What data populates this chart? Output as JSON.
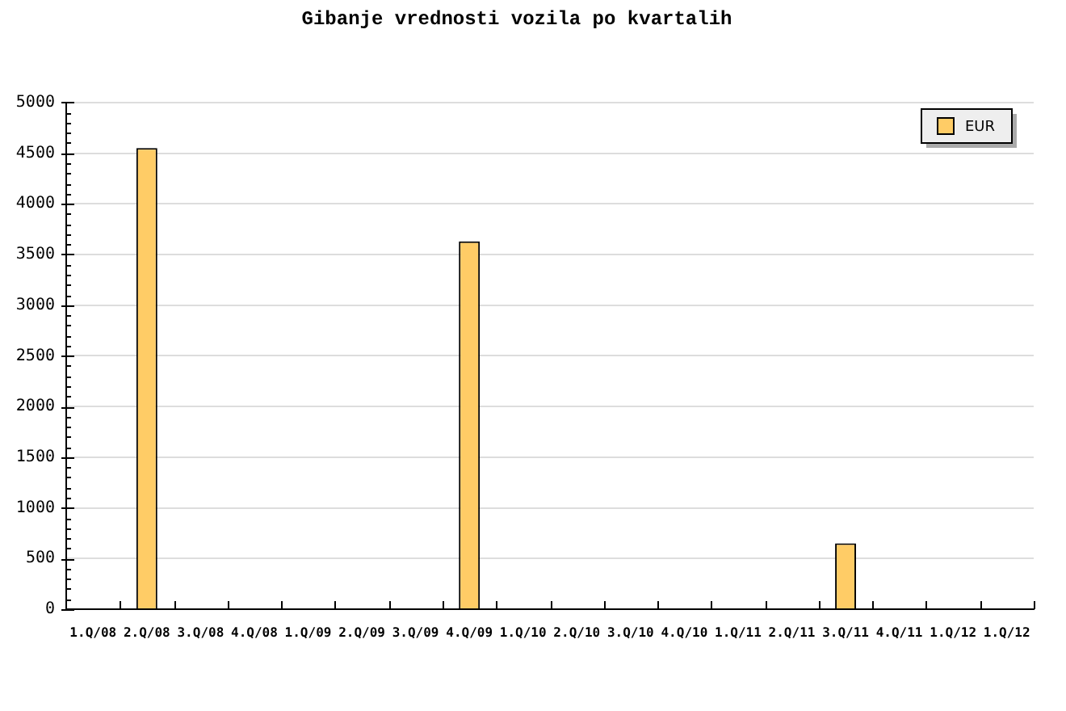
{
  "chart_data": {
    "type": "bar",
    "title": "Gibanje vrednosti vozila po kvartalih",
    "categories": [
      "1.Q/08",
      "2.Q/08",
      "3.Q/08",
      "4.Q/08",
      "1.Q/09",
      "2.Q/09",
      "3.Q/09",
      "4.Q/09",
      "1.Q/10",
      "2.Q/10",
      "3.Q/10",
      "4.Q/10",
      "1.Q/11",
      "2.Q/11",
      "3.Q/11",
      "4.Q/11",
      "1.Q/12",
      "1.Q/12"
    ],
    "series": [
      {
        "name": "EUR",
        "color": "#ffcc66",
        "values": [
          null,
          4550,
          null,
          null,
          null,
          null,
          null,
          3630,
          null,
          null,
          null,
          null,
          null,
          null,
          650,
          null,
          null,
          null
        ]
      }
    ],
    "ylim": [
      0,
      5000
    ],
    "yticks": [
      0,
      {
        "value": 100,
        "label": null
      },
      {
        "value": 200,
        "label": null
      },
      {
        "value": 300,
        "label": null
      },
      {
        "value": 400,
        "label": null
      },
      500,
      {
        "value": 600,
        "label": null
      },
      {
        "value": 700,
        "label": null
      },
      {
        "value": 800,
        "label": null
      },
      {
        "value": 900,
        "label": null
      },
      1000,
      {
        "value": 1100,
        "label": null
      },
      {
        "value": 1200,
        "label": null
      },
      {
        "value": 1300,
        "label": null
      },
      {
        "value": 1400,
        "label": null
      },
      1500,
      {
        "value": 1600,
        "label": null
      },
      {
        "value": 1700,
        "label": null
      },
      {
        "value": 1800,
        "label": null
      },
      {
        "value": 1900,
        "label": null
      },
      2000,
      {
        "value": 2100,
        "label": null
      },
      {
        "value": 2200,
        "label": null
      },
      {
        "value": 2300,
        "label": null
      },
      {
        "value": 2400,
        "label": null
      },
      2500,
      {
        "value": 2600,
        "label": null
      },
      {
        "value": 2700,
        "label": null
      },
      {
        "value": 2800,
        "label": null
      },
      {
        "value": 2900,
        "label": null
      },
      3000,
      {
        "value": 3100,
        "label": null
      },
      {
        "value": 3200,
        "label": null
      },
      {
        "value": 3300,
        "label": null
      },
      {
        "value": 3400,
        "label": null
      },
      3500,
      {
        "value": 3600,
        "label": null
      },
      {
        "value": 3700,
        "label": null
      },
      {
        "value": 3800,
        "label": null
      },
      {
        "value": 3900,
        "label": null
      },
      4000,
      {
        "value": 4100,
        "label": null
      },
      {
        "value": 4200,
        "label": null
      },
      {
        "value": 4300,
        "label": null
      },
      {
        "value": 4400,
        "label": null
      },
      4500,
      {
        "value": 4600,
        "label": null
      },
      {
        "value": 4700,
        "label": null
      },
      {
        "value": 4800,
        "label": null
      },
      {
        "value": 4900,
        "label": null
      },
      5000
    ],
    "grid": "y",
    "legend": "top right"
  }
}
